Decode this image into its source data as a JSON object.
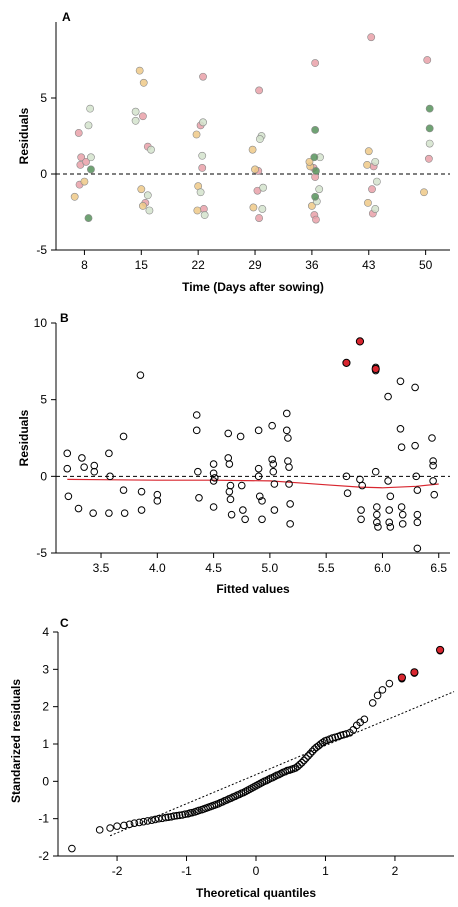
{
  "chart_data": [
    {
      "panel": "A",
      "type": "scatter",
      "xlabel": "Time (Days after sowing)",
      "ylabel": "Residuals",
      "xticks": [
        8,
        15,
        22,
        29,
        36,
        43,
        50
      ],
      "yticks": [
        -5,
        0,
        5
      ],
      "xlim": [
        4.5,
        53
      ],
      "ylim": [
        -5,
        10
      ],
      "reference_line": 0,
      "series": [
        {
          "color": "#e9a0a8",
          "points": [
            [
              7.3,
              2.7
            ],
            [
              7.6,
              1.1
            ],
            [
              7.5,
              0.6
            ],
            [
              8.2,
              0.8
            ],
            [
              7.4,
              -0.7
            ],
            [
              15.2,
              3.8
            ],
            [
              15.8,
              1.8
            ],
            [
              15.5,
              -1.9
            ],
            [
              22.6,
              6.4
            ],
            [
              22.3,
              3.2
            ],
            [
              22.5,
              0.4
            ],
            [
              22.7,
              -2.3
            ],
            [
              29.5,
              5.5
            ],
            [
              29.4,
              0.2
            ],
            [
              29.5,
              -2.9
            ],
            [
              29.3,
              -1.1
            ],
            [
              36.4,
              7.3
            ],
            [
              36.2,
              0.4
            ],
            [
              36.3,
              -2.7
            ],
            [
              36.5,
              -3.0
            ],
            [
              36.4,
              -0.2
            ],
            [
              43.3,
              9.0
            ],
            [
              43.6,
              0.5
            ],
            [
              43.5,
              -2.6
            ],
            [
              43.4,
              -1.0
            ],
            [
              50.2,
              7.5
            ],
            [
              50.4,
              1.0
            ]
          ]
        },
        {
          "color": "#eec987",
          "points": [
            [
              6.8,
              -1.5
            ],
            [
              8.0,
              -0.5
            ],
            [
              14.8,
              6.8
            ],
            [
              15.3,
              6.0
            ],
            [
              15.0,
              -1.0
            ],
            [
              15.2,
              -2.1
            ],
            [
              21.8,
              2.6
            ],
            [
              22.0,
              -0.8
            ],
            [
              21.9,
              -2.4
            ],
            [
              28.7,
              1.6
            ],
            [
              29.0,
              0.3
            ],
            [
              28.8,
              -2.2
            ],
            [
              35.8,
              0.5
            ],
            [
              35.7,
              0.8
            ],
            [
              36.0,
              -2.1
            ],
            [
              43.0,
              1.5
            ],
            [
              42.8,
              0.6
            ],
            [
              42.9,
              -1.9
            ],
            [
              49.8,
              -1.2
            ]
          ]
        },
        {
          "color": "#d4e3cc",
          "points": [
            [
              8.7,
              4.3
            ],
            [
              8.5,
              3.2
            ],
            [
              8.8,
              1.1
            ],
            [
              14.3,
              4.1
            ],
            [
              14.3,
              3.5
            ],
            [
              16.2,
              1.6
            ],
            [
              15.8,
              -1.4
            ],
            [
              16.0,
              -2.4
            ],
            [
              22.5,
              1.2
            ],
            [
              22.3,
              -1.2
            ],
            [
              22.8,
              -2.7
            ],
            [
              22.6,
              3.4
            ],
            [
              29.8,
              2.5
            ],
            [
              29.6,
              2.3
            ],
            [
              30.0,
              -0.9
            ],
            [
              29.9,
              -2.3
            ],
            [
              37.0,
              1.1
            ],
            [
              36.9,
              -1.0
            ],
            [
              36.6,
              -1.8
            ],
            [
              43.8,
              0.8
            ],
            [
              44.0,
              -0.5
            ],
            [
              43.8,
              -2.3
            ],
            [
              50.5,
              2.0
            ]
          ]
        },
        {
          "color": "#56925a",
          "points": [
            [
              8.5,
              -2.9
            ],
            [
              8.8,
              0.3
            ],
            [
              36.4,
              2.9
            ],
            [
              36.3,
              1.1
            ],
            [
              36.5,
              0.2
            ],
            [
              36.4,
              -1.5
            ],
            [
              50.5,
              4.3
            ],
            [
              50.5,
              3.0
            ]
          ]
        }
      ]
    },
    {
      "panel": "B",
      "type": "scatter",
      "xlabel": "Fitted values",
      "ylabel": "Residuals",
      "xticks": [
        3.5,
        4.0,
        4.5,
        5.0,
        5.5,
        6.0,
        6.5
      ],
      "xtick_labels": [
        "3.5",
        "4.0",
        "4.5",
        "5.0",
        "5.5",
        "6.0",
        "6.5"
      ],
      "yticks": [
        -5,
        0,
        5,
        10
      ],
      "xlim": [
        3.1,
        6.6
      ],
      "ylim": [
        -5,
        10
      ],
      "reference_line": 0,
      "points": [
        [
          3.2,
          1.5
        ],
        [
          3.2,
          0.5
        ],
        [
          3.21,
          -1.3
        ],
        [
          3.3,
          -2.1
        ],
        [
          3.33,
          1.2
        ],
        [
          3.35,
          0.6
        ],
        [
          3.43,
          -2.4
        ],
        [
          3.44,
          0.7
        ],
        [
          3.44,
          0.3
        ],
        [
          3.57,
          1.5
        ],
        [
          3.58,
          0.0
        ],
        [
          3.57,
          -2.4
        ],
        [
          3.7,
          2.6
        ],
        [
          3.7,
          -0.9
        ],
        [
          3.71,
          -2.4
        ],
        [
          3.85,
          6.6
        ],
        [
          3.86,
          -1.0
        ],
        [
          3.86,
          -2.2
        ],
        [
          4.0,
          -1.2
        ],
        [
          4.0,
          -1.6
        ],
        [
          4.35,
          4.0
        ],
        [
          4.35,
          3.0
        ],
        [
          4.36,
          0.3
        ],
        [
          4.37,
          -1.4
        ],
        [
          4.5,
          0.8
        ],
        [
          4.5,
          0.2
        ],
        [
          4.5,
          -0.3
        ],
        [
          4.5,
          -2.0
        ],
        [
          4.51,
          -0.1
        ],
        [
          4.63,
          2.8
        ],
        [
          4.63,
          1.2
        ],
        [
          4.64,
          0.8
        ],
        [
          4.65,
          -0.6
        ],
        [
          4.64,
          -1.0
        ],
        [
          4.65,
          -1.5
        ],
        [
          4.66,
          -2.5
        ],
        [
          4.74,
          2.6
        ],
        [
          4.75,
          -0.6
        ],
        [
          4.76,
          -2.2
        ],
        [
          4.78,
          -2.8
        ],
        [
          4.9,
          3.0
        ],
        [
          4.9,
          0.5
        ],
        [
          4.9,
          0.0
        ],
        [
          4.91,
          -1.3
        ],
        [
          4.93,
          -1.6
        ],
        [
          4.93,
          -2.8
        ],
        [
          5.02,
          3.3
        ],
        [
          5.02,
          1.1
        ],
        [
          5.03,
          0.8
        ],
        [
          5.03,
          0.3
        ],
        [
          5.04,
          -0.5
        ],
        [
          5.04,
          -2.2
        ],
        [
          5.15,
          4.1
        ],
        [
          5.15,
          3.0
        ],
        [
          5.16,
          2.5
        ],
        [
          5.16,
          1.0
        ],
        [
          5.17,
          0.6
        ],
        [
          5.17,
          -0.5
        ],
        [
          5.18,
          -1.8
        ],
        [
          5.18,
          -3.1
        ],
        [
          5.68,
          7.4
        ],
        [
          5.68,
          0.0
        ],
        [
          5.69,
          -1.1
        ],
        [
          5.8,
          8.8
        ],
        [
          5.8,
          -0.2
        ],
        [
          5.81,
          -2.2
        ],
        [
          5.81,
          -2.8
        ],
        [
          5.82,
          -0.6
        ],
        [
          5.94,
          7.1
        ],
        [
          5.94,
          6.9
        ],
        [
          5.94,
          0.3
        ],
        [
          5.95,
          -2.0
        ],
        [
          5.95,
          -2.5
        ],
        [
          5.95,
          -3.0
        ],
        [
          5.96,
          -3.3
        ],
        [
          6.05,
          5.2
        ],
        [
          6.05,
          -0.3
        ],
        [
          6.06,
          -2.2
        ],
        [
          6.06,
          -3.0
        ],
        [
          6.07,
          -3.3
        ],
        [
          6.07,
          -1.3
        ],
        [
          6.16,
          6.2
        ],
        [
          6.16,
          3.1
        ],
        [
          6.17,
          1.9
        ],
        [
          6.17,
          -2.0
        ],
        [
          6.18,
          -2.5
        ],
        [
          6.18,
          -3.1
        ],
        [
          6.29,
          5.8
        ],
        [
          6.29,
          2.0
        ],
        [
          6.3,
          0.0
        ],
        [
          6.31,
          -2.5
        ],
        [
          6.31,
          -3.0
        ],
        [
          6.31,
          -4.7
        ],
        [
          6.31,
          -0.9
        ],
        [
          6.44,
          2.5
        ],
        [
          6.45,
          1.0
        ],
        [
          6.45,
          0.7
        ],
        [
          6.45,
          -0.3
        ],
        [
          6.46,
          -1.2
        ]
      ],
      "highlighted": [
        [
          5.68,
          7.4
        ],
        [
          5.8,
          8.8
        ],
        [
          5.94,
          7.0
        ]
      ],
      "smooth": [
        [
          3.2,
          -0.2
        ],
        [
          3.5,
          -0.22
        ],
        [
          4.0,
          -0.25
        ],
        [
          4.5,
          -0.25
        ],
        [
          5.0,
          -0.3
        ],
        [
          5.3,
          -0.45
        ],
        [
          5.5,
          -0.55
        ],
        [
          5.8,
          -0.7
        ],
        [
          6.0,
          -0.75
        ],
        [
          6.3,
          -0.65
        ],
        [
          6.5,
          -0.5
        ]
      ]
    },
    {
      "panel": "C",
      "type": "scatter",
      "xlabel": "Theoretical quantiles",
      "ylabel": "Standarized residuals",
      "xticks": [
        -2,
        -1,
        0,
        1,
        2
      ],
      "yticks": [
        -2,
        -1,
        0,
        1,
        2,
        3,
        4
      ],
      "xlim": [
        -2.85,
        2.85
      ],
      "ylim": [
        -2,
        4
      ],
      "reference_line": {
        "intercept": 0.18,
        "slope": 0.78
      },
      "points": [
        [
          -2.65,
          -1.8
        ],
        [
          -2.25,
          -1.3
        ],
        [
          -2.1,
          -1.25
        ],
        [
          -2.0,
          -1.2
        ],
        [
          -1.9,
          -1.18
        ],
        [
          -1.82,
          -1.15
        ],
        [
          -1.75,
          -1.12
        ],
        [
          -1.68,
          -1.1
        ],
        [
          -1.62,
          -1.08
        ],
        [
          -1.56,
          -1.06
        ],
        [
          -1.5,
          -1.04
        ],
        [
          -1.45,
          -1.02
        ],
        [
          -1.4,
          -1.0
        ],
        [
          -1.35,
          -0.99
        ],
        [
          -1.3,
          -0.97
        ],
        [
          -1.26,
          -0.96
        ],
        [
          -1.22,
          -0.95
        ],
        [
          -1.18,
          -0.93
        ],
        [
          -1.14,
          -0.92
        ],
        [
          -1.1,
          -0.91
        ],
        [
          -1.06,
          -0.9
        ],
        [
          -1.02,
          -0.88
        ],
        [
          -0.98,
          -0.87
        ],
        [
          -0.95,
          -0.85
        ],
        [
          -0.92,
          -0.84
        ],
        [
          -0.88,
          -0.82
        ],
        [
          -0.85,
          -0.8
        ],
        [
          -0.82,
          -0.78
        ],
        [
          -0.78,
          -0.76
        ],
        [
          -0.75,
          -0.74
        ],
        [
          -0.72,
          -0.72
        ],
        [
          -0.69,
          -0.7
        ],
        [
          -0.66,
          -0.68
        ],
        [
          -0.63,
          -0.66
        ],
        [
          -0.6,
          -0.64
        ],
        [
          -0.57,
          -0.62
        ],
        [
          -0.54,
          -0.6
        ],
        [
          -0.51,
          -0.57
        ],
        [
          -0.48,
          -0.55
        ],
        [
          -0.45,
          -0.52
        ],
        [
          -0.42,
          -0.5
        ],
        [
          -0.39,
          -0.47
        ],
        [
          -0.36,
          -0.45
        ],
        [
          -0.33,
          -0.42
        ],
        [
          -0.3,
          -0.4
        ],
        [
          -0.27,
          -0.37
        ],
        [
          -0.24,
          -0.35
        ],
        [
          -0.21,
          -0.32
        ],
        [
          -0.18,
          -0.3
        ],
        [
          -0.15,
          -0.27
        ],
        [
          -0.12,
          -0.24
        ],
        [
          -0.09,
          -0.21
        ],
        [
          -0.06,
          -0.18
        ],
        [
          -0.03,
          -0.15
        ],
        [
          0.0,
          -0.12
        ],
        [
          0.03,
          -0.09
        ],
        [
          0.06,
          -0.06
        ],
        [
          0.09,
          -0.03
        ],
        [
          0.12,
          0.0
        ],
        [
          0.15,
          0.02
        ],
        [
          0.18,
          0.05
        ],
        [
          0.21,
          0.08
        ],
        [
          0.24,
          0.1
        ],
        [
          0.27,
          0.13
        ],
        [
          0.3,
          0.16
        ],
        [
          0.33,
          0.18
        ],
        [
          0.36,
          0.21
        ],
        [
          0.39,
          0.24
        ],
        [
          0.42,
          0.26
        ],
        [
          0.45,
          0.29
        ],
        [
          0.48,
          0.3
        ],
        [
          0.51,
          0.32
        ],
        [
          0.54,
          0.34
        ],
        [
          0.57,
          0.36
        ],
        [
          0.6,
          0.4
        ],
        [
          0.63,
          0.45
        ],
        [
          0.66,
          0.5
        ],
        [
          0.69,
          0.56
        ],
        [
          0.72,
          0.62
        ],
        [
          0.75,
          0.68
        ],
        [
          0.78,
          0.74
        ],
        [
          0.81,
          0.8
        ],
        [
          0.84,
          0.86
        ],
        [
          0.87,
          0.91
        ],
        [
          0.9,
          0.95
        ],
        [
          0.93,
          1.0
        ],
        [
          0.96,
          1.04
        ],
        [
          0.99,
          1.08
        ],
        [
          1.02,
          1.1
        ],
        [
          1.06,
          1.13
        ],
        [
          1.1,
          1.16
        ],
        [
          1.14,
          1.18
        ],
        [
          1.18,
          1.2
        ],
        [
          1.22,
          1.23
        ],
        [
          1.26,
          1.25
        ],
        [
          1.3,
          1.27
        ],
        [
          1.35,
          1.3
        ],
        [
          1.4,
          1.38
        ],
        [
          1.45,
          1.5
        ],
        [
          1.5,
          1.58
        ],
        [
          1.56,
          1.66
        ],
        [
          1.68,
          2.1
        ],
        [
          1.75,
          2.3
        ],
        [
          1.82,
          2.45
        ],
        [
          1.92,
          2.62
        ],
        [
          2.1,
          2.75
        ],
        [
          2.28,
          2.9
        ],
        [
          2.65,
          3.5
        ]
      ],
      "highlighted": [
        [
          2.1,
          2.78
        ],
        [
          2.28,
          2.92
        ],
        [
          2.65,
          3.52
        ]
      ]
    }
  ]
}
